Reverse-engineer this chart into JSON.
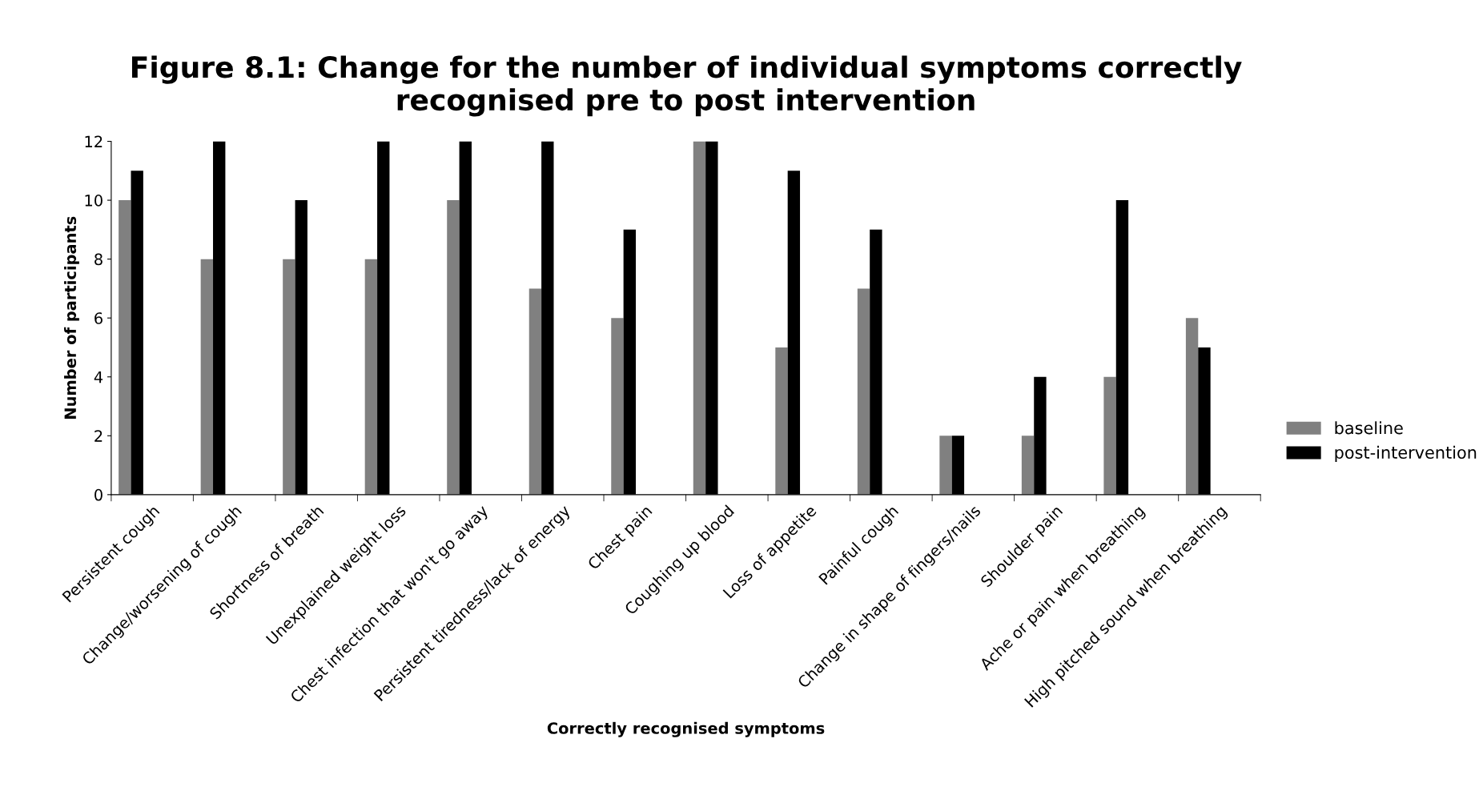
{
  "chart_data": {
    "type": "bar",
    "title": "Figure 8.1: Change for the number of individual symptoms correctly\nrecognised pre to post intervention",
    "xlabel": "Correctly recognised symptoms",
    "ylabel": "Number of participants",
    "categories": [
      "Persistent cough",
      "Change/worsening of cough",
      "Shortness of breath",
      "Unexplained weight loss",
      "Chest infection that won't go away",
      "Persistent tiredness/lack of energy",
      "Chest pain",
      "Coughing up blood",
      "Loss of appetite",
      "Painful cough",
      "Change in shape of fingers/nails",
      "Shoulder pain",
      "Ache or pain when breathing",
      "High pitched sound when breathing"
    ],
    "series": [
      {
        "name": "baseline",
        "color": "#808080",
        "values": [
          10,
          8,
          8,
          8,
          10,
          7,
          6,
          12,
          5,
          7,
          2,
          2,
          4,
          6
        ]
      },
      {
        "name": "post-intervention",
        "color": "#000000",
        "values": [
          11,
          12,
          10,
          12,
          12,
          12,
          9,
          12,
          11,
          9,
          2,
          4,
          10,
          5
        ]
      }
    ],
    "ylim": [
      0,
      12
    ],
    "yticks": [
      0,
      2,
      4,
      6,
      8,
      10,
      12
    ],
    "grid": false,
    "legend": "right"
  }
}
